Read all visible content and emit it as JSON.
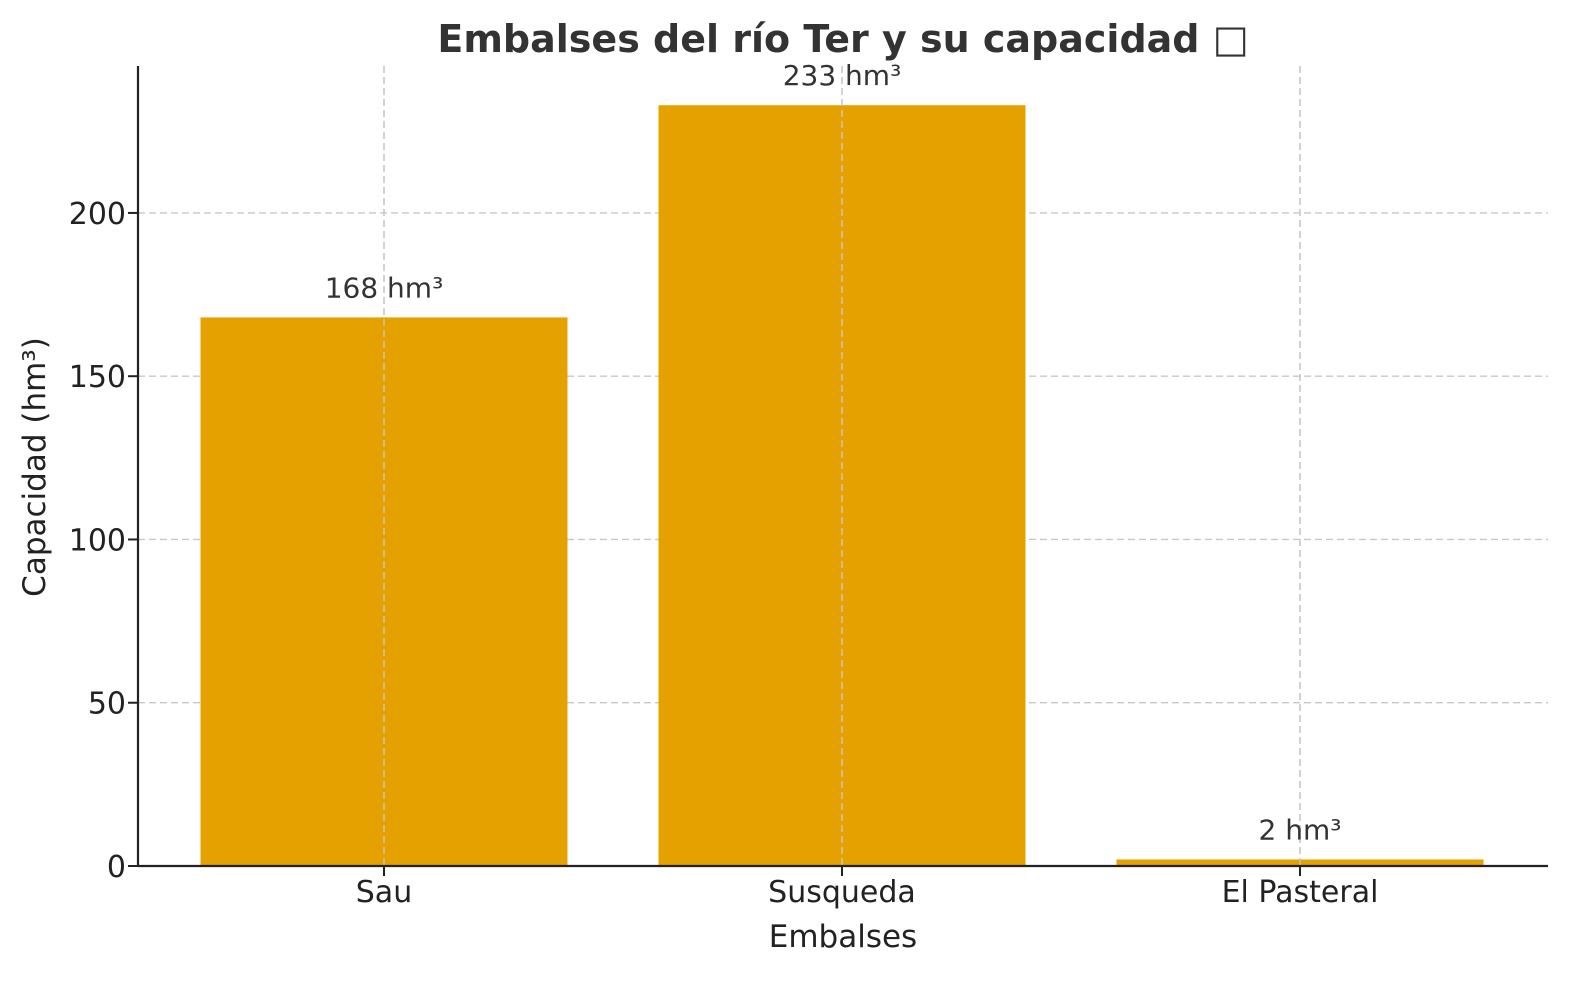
{
  "chart_data": {
    "type": "bar",
    "title": "Embalses del río Ter y su capacidad □",
    "xlabel": "Embalses",
    "ylabel": "Capacidad (hm³)",
    "categories": [
      "Sau",
      "Susqueda",
      "El Pasteral"
    ],
    "values": [
      168,
      233,
      2
    ],
    "data_labels": [
      "168 hm³",
      "233 hm³",
      "2 hm³"
    ],
    "ylim": [
      0,
      245
    ],
    "yticks": [
      0,
      50,
      100,
      150,
      200
    ],
    "bar_color": "#E5A100",
    "grid": true,
    "grid_style": "dashed"
  }
}
